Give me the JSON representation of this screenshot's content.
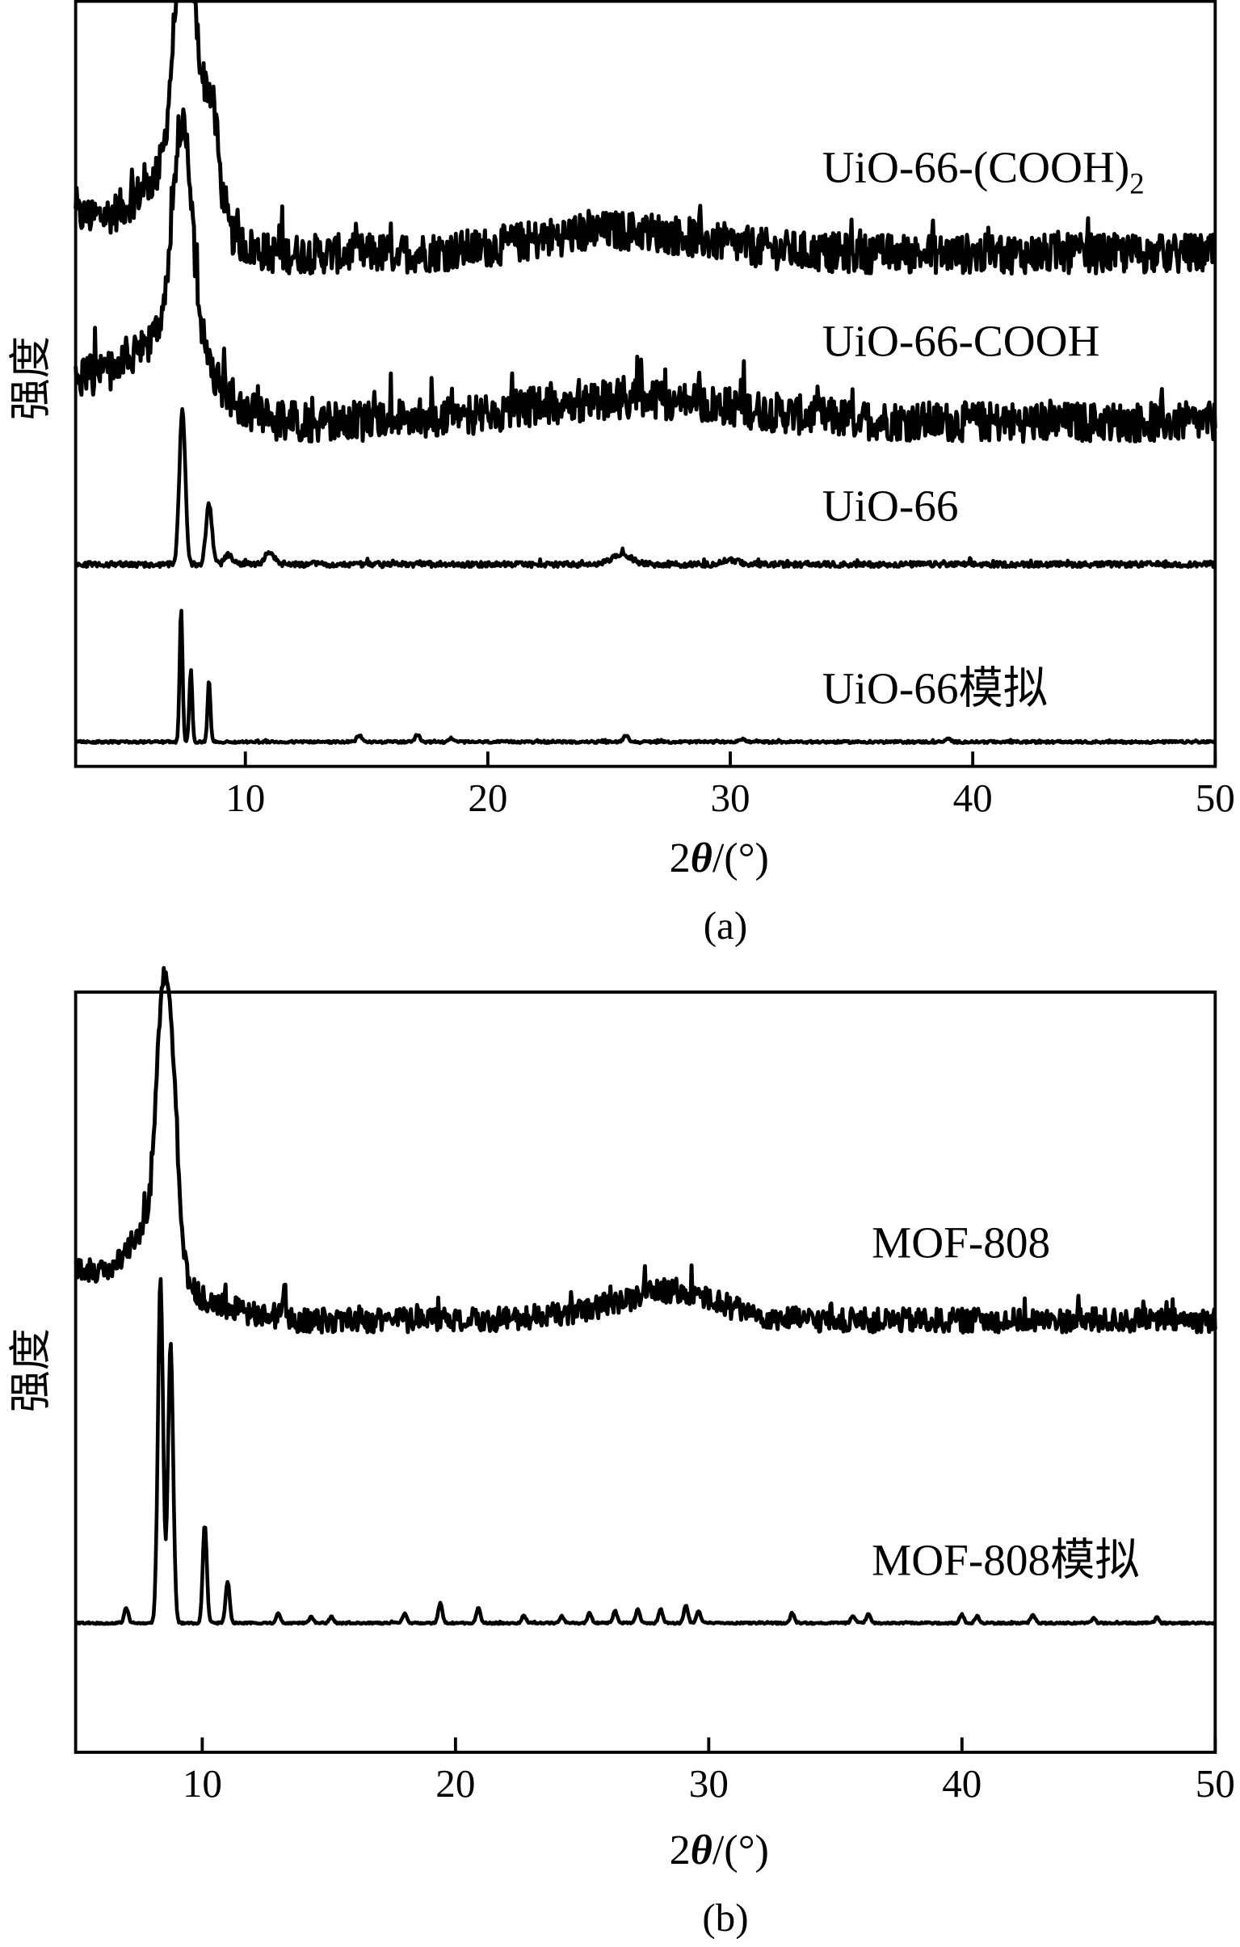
{
  "chart_data": [
    {
      "panel_label": "(a)",
      "type": "line",
      "xlabel_prefix": "2",
      "xlabel_symbol": "θ",
      "xlabel_suffix": "/(°)",
      "ylabel": "强度",
      "xlim": [
        3,
        50
      ],
      "ylim": [
        0,
        100
      ],
      "xticks": [
        10,
        20,
        30,
        40,
        50
      ],
      "yticks": [],
      "grid": false,
      "y_units": "arbitrary (stacked offsets)",
      "series": [
        {
          "name": "UiO-66-(COOH)₂",
          "label_main": "UiO-66-(COOH)",
          "label_sub": "2",
          "baseline": 67,
          "noise": 2.6,
          "start_level": 72,
          "peaks": [
            [
              7.3,
              22,
              0.35
            ],
            [
              7.8,
              20,
              0.35
            ],
            [
              8.6,
              14,
              0.3
            ],
            [
              7.0,
              8,
              1.3
            ],
            [
              25.5,
              3,
              3.5
            ]
          ]
        },
        {
          "name": "UiO-66-COOH",
          "label_main": "UiO-66-COOH",
          "baseline": 45,
          "noise": 2.6,
          "start_level": 51,
          "peaks": [
            [
              7.3,
              19,
              0.35
            ],
            [
              7.6,
              12,
              0.4
            ],
            [
              7.0,
              8,
              1.5
            ],
            [
              26.0,
              3,
              4.5
            ]
          ]
        },
        {
          "name": "UiO-66",
          "label_main": "UiO-66",
          "baseline": 26.4,
          "noise": 0.35,
          "start_level": 26.4,
          "peaks": [
            [
              7.4,
              20.5,
              0.12
            ],
            [
              8.5,
              8,
              0.12
            ],
            [
              9.3,
              1.2,
              0.15
            ],
            [
              11.0,
              1.5,
              0.2
            ],
            [
              25.5,
              1.4,
              0.4
            ],
            [
              30.0,
              0.6,
              0.3
            ]
          ]
        },
        {
          "name": "UiO-66模拟",
          "label_main": "UiO-66模拟",
          "baseline": 3.2,
          "noise": 0.15,
          "start_level": 3.2,
          "peaks": [
            [
              7.35,
              17.5,
              0.06
            ],
            [
              7.75,
              9.4,
              0.06
            ],
            [
              8.5,
              8.1,
              0.06
            ],
            [
              14.7,
              0.9,
              0.1
            ],
            [
              17.1,
              1.0,
              0.08
            ],
            [
              18.5,
              0.5,
              0.08
            ],
            [
              25.7,
              0.9,
              0.1
            ],
            [
              30.5,
              0.4,
              0.1
            ],
            [
              39.0,
              0.4,
              0.1
            ]
          ]
        }
      ]
    },
    {
      "panel_label": "(b)",
      "type": "line",
      "xlabel_prefix": "2",
      "xlabel_symbol": "θ",
      "xlabel_suffix": "/(°)",
      "ylabel": "强度",
      "xlim": [
        5,
        50
      ],
      "ylim": [
        0,
        100
      ],
      "xticks": [
        10,
        20,
        30,
        40,
        50
      ],
      "yticks": [],
      "grid": false,
      "y_units": "arbitrary (stacked offsets)",
      "series": [
        {
          "name": "MOF-808",
          "label_main": "MOF-808",
          "baseline": 56.8,
          "noise": 1.6,
          "start_level": 64,
          "peaks": [
            [
              8.4,
              26,
              0.25
            ],
            [
              8.8,
              22,
              0.25
            ],
            [
              8.0,
              8,
              0.8
            ],
            [
              13.2,
              4,
              0.08
            ],
            [
              27.5,
              2.2,
              2.5
            ],
            [
              29.0,
              2.0,
              1.5
            ]
          ]
        },
        {
          "name": "MOF-808模拟",
          "label_main": "MOF-808模拟",
          "baseline": 17,
          "noise": 0.12,
          "start_level": 17,
          "peaks": [
            [
              7.0,
              2,
              0.08
            ],
            [
              8.35,
              45.5,
              0.1
            ],
            [
              8.75,
              37,
              0.1
            ],
            [
              10.1,
              13,
              0.08
            ],
            [
              11.0,
              5.5,
              0.08
            ],
            [
              13.0,
              1.4,
              0.08
            ],
            [
              14.3,
              0.8,
              0.08
            ],
            [
              15.1,
              0.8,
              0.08
            ],
            [
              18.0,
              1.3,
              0.08
            ],
            [
              19.4,
              2.6,
              0.08
            ],
            [
              20.9,
              2.0,
              0.08
            ],
            [
              22.7,
              1.0,
              0.08
            ],
            [
              24.2,
              0.9,
              0.08
            ],
            [
              25.3,
              1.3,
              0.08
            ],
            [
              26.3,
              1.6,
              0.08
            ],
            [
              27.2,
              1.8,
              0.08
            ],
            [
              28.1,
              1.8,
              0.08
            ],
            [
              29.1,
              2.4,
              0.08
            ],
            [
              29.6,
              1.6,
              0.08
            ],
            [
              33.3,
              1.3,
              0.08
            ],
            [
              35.7,
              1.0,
              0.08
            ],
            [
              36.3,
              1.2,
              0.08
            ],
            [
              40.0,
              1.1,
              0.08
            ],
            [
              40.6,
              0.9,
              0.08
            ],
            [
              42.8,
              1.1,
              0.08
            ],
            [
              45.2,
              0.6,
              0.08
            ],
            [
              47.7,
              0.7,
              0.08
            ]
          ]
        }
      ]
    }
  ]
}
